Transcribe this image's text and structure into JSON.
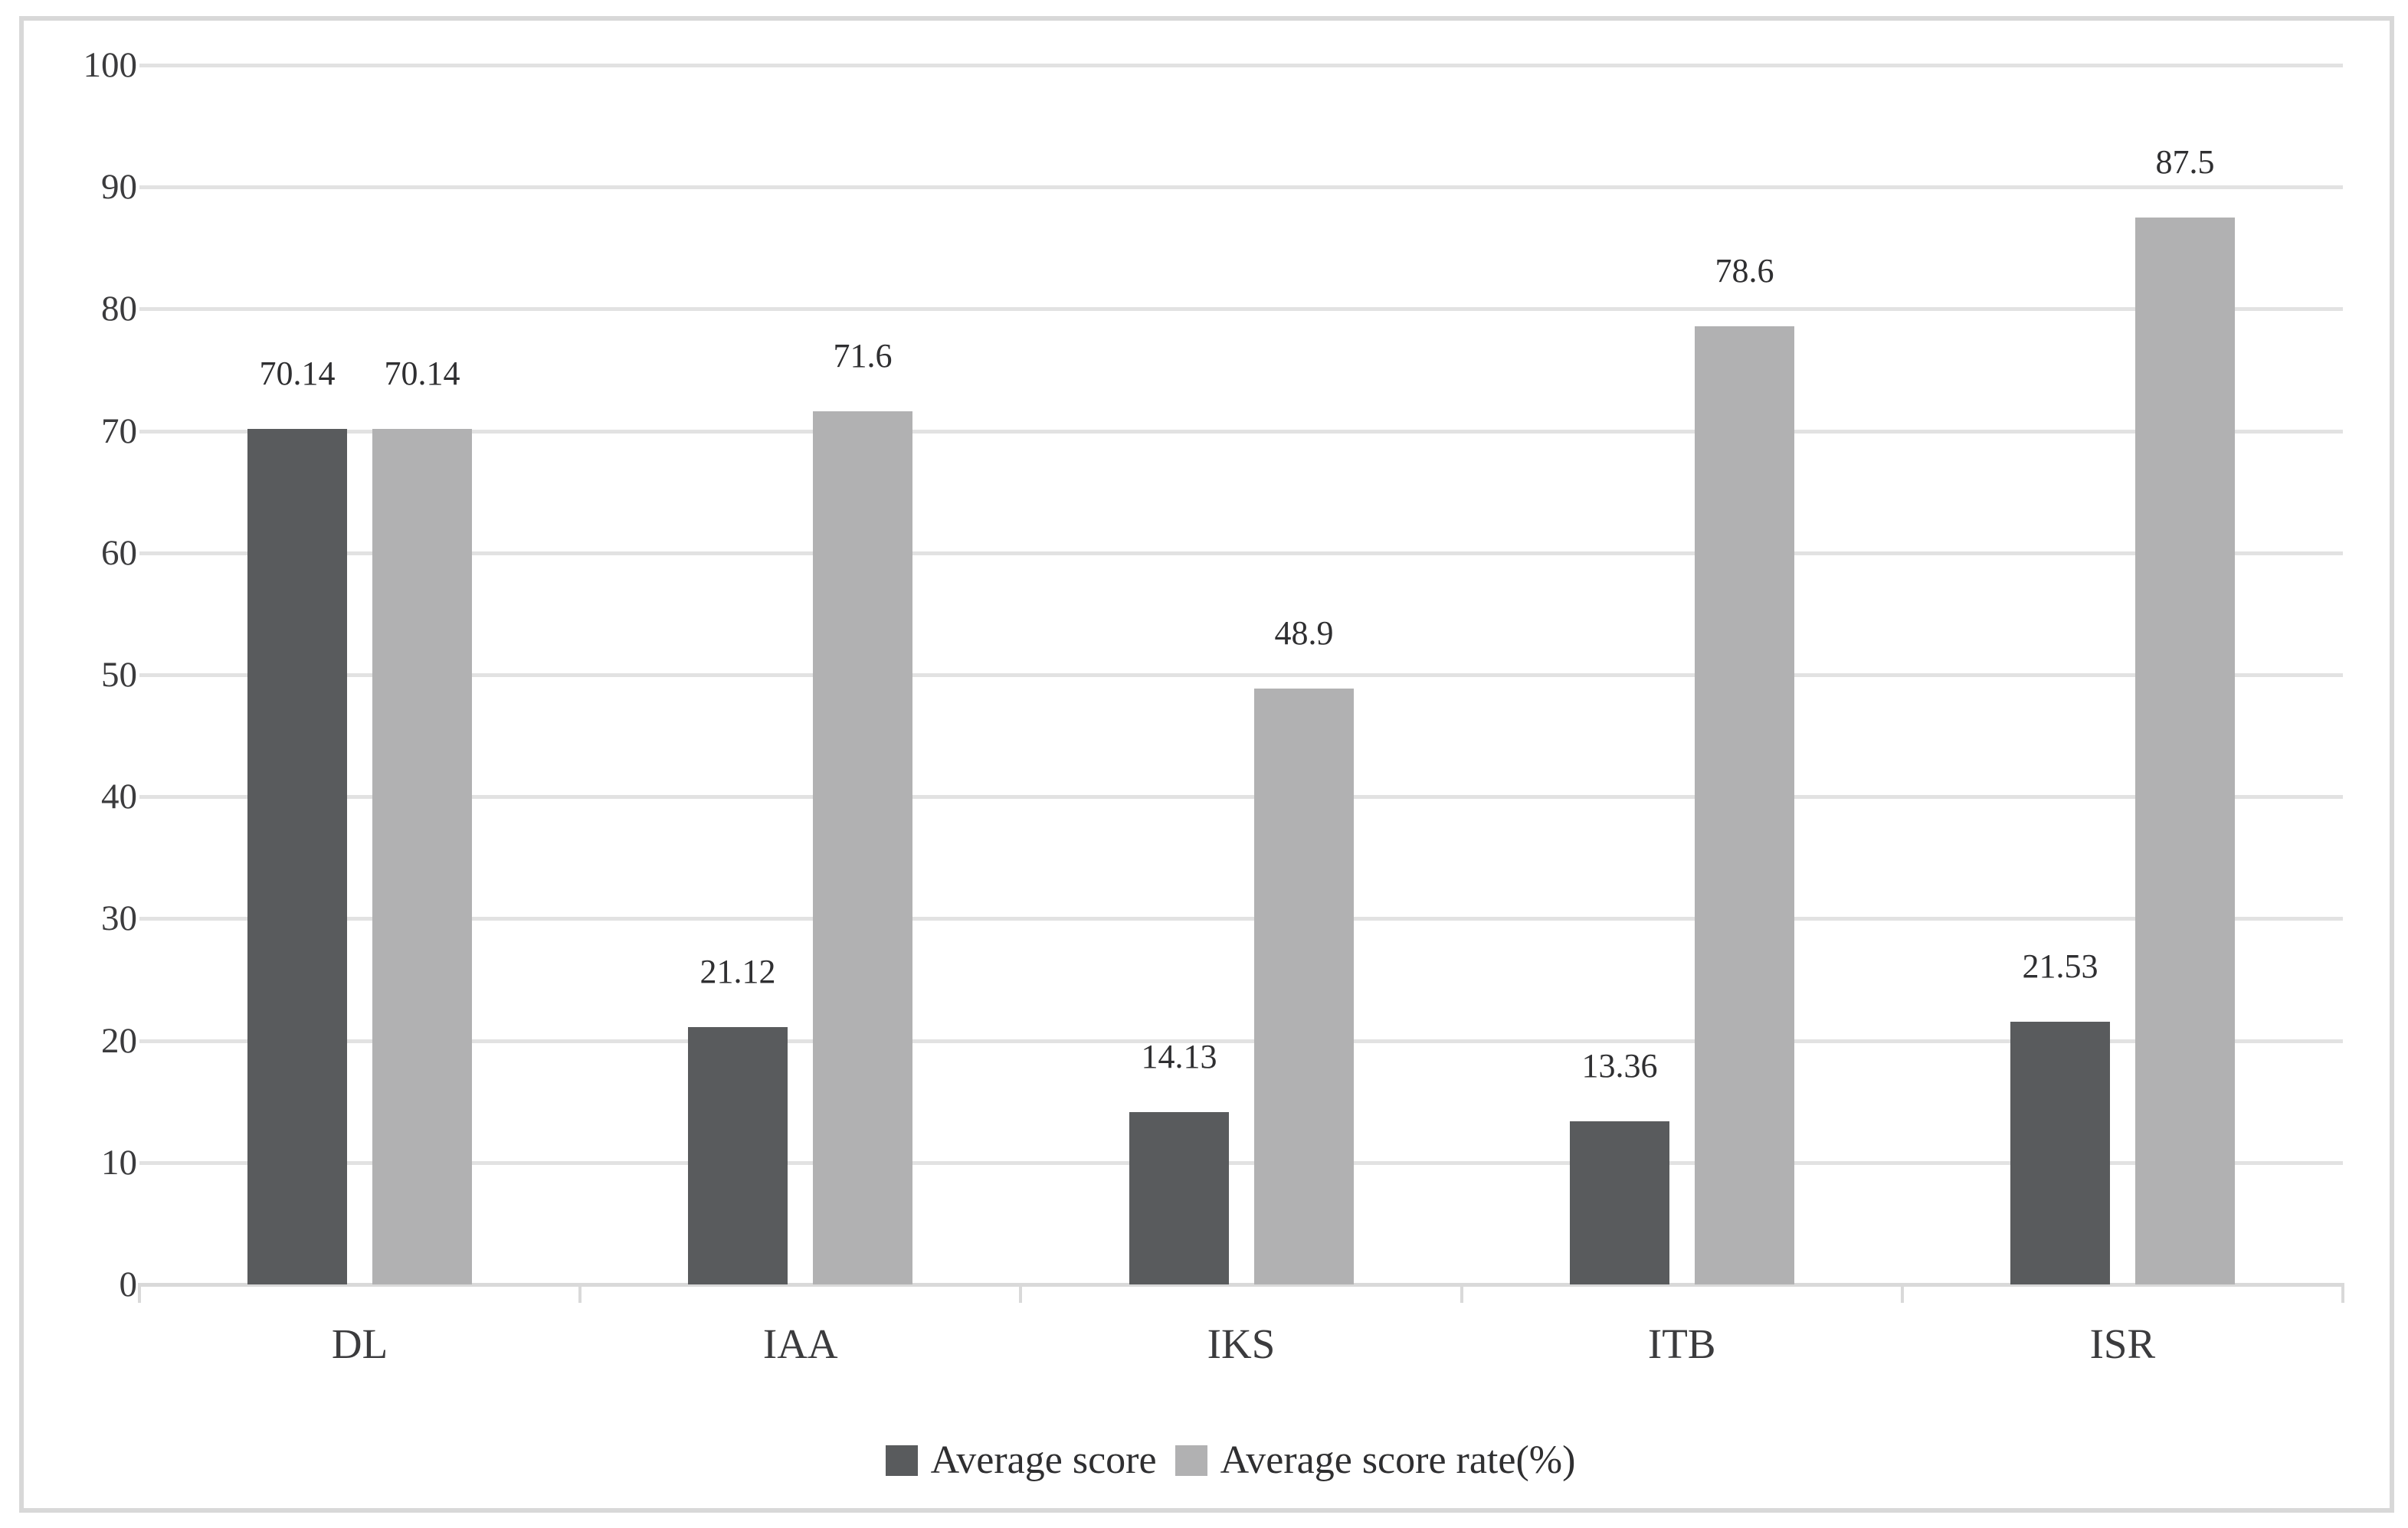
{
  "chart_data": {
    "type": "bar",
    "title": "",
    "xlabel": "",
    "ylabel": "",
    "categories": [
      "DL",
      "IAA",
      "IKS",
      "ITB",
      "ISR"
    ],
    "series": [
      {
        "name": "Average score",
        "color": "#595b5d",
        "values": [
          70.14,
          21.12,
          14.13,
          13.36,
          21.53
        ],
        "labels": [
          "70.14",
          "21.12",
          "14.13",
          "13.36",
          "21.53"
        ]
      },
      {
        "name": "Average score rate(%)",
        "color": "#b1b1b2",
        "values": [
          70.14,
          71.6,
          48.9,
          78.6,
          87.5
        ],
        "labels": [
          "70.14",
          "71.6",
          "48.9",
          "78.6",
          "87.5"
        ]
      }
    ],
    "ylim": [
      0,
      100
    ],
    "ytick_step": 10,
    "yticks": [
      0,
      10,
      20,
      30,
      40,
      50,
      60,
      70,
      80,
      90,
      100
    ],
    "grid": true,
    "legend_position": "bottom",
    "gridline_color": "#e2e2e2",
    "axis_color": "#d9d9d9",
    "frame_border_color": "#d8d8d8",
    "text_color": "#3b3b3d"
  }
}
